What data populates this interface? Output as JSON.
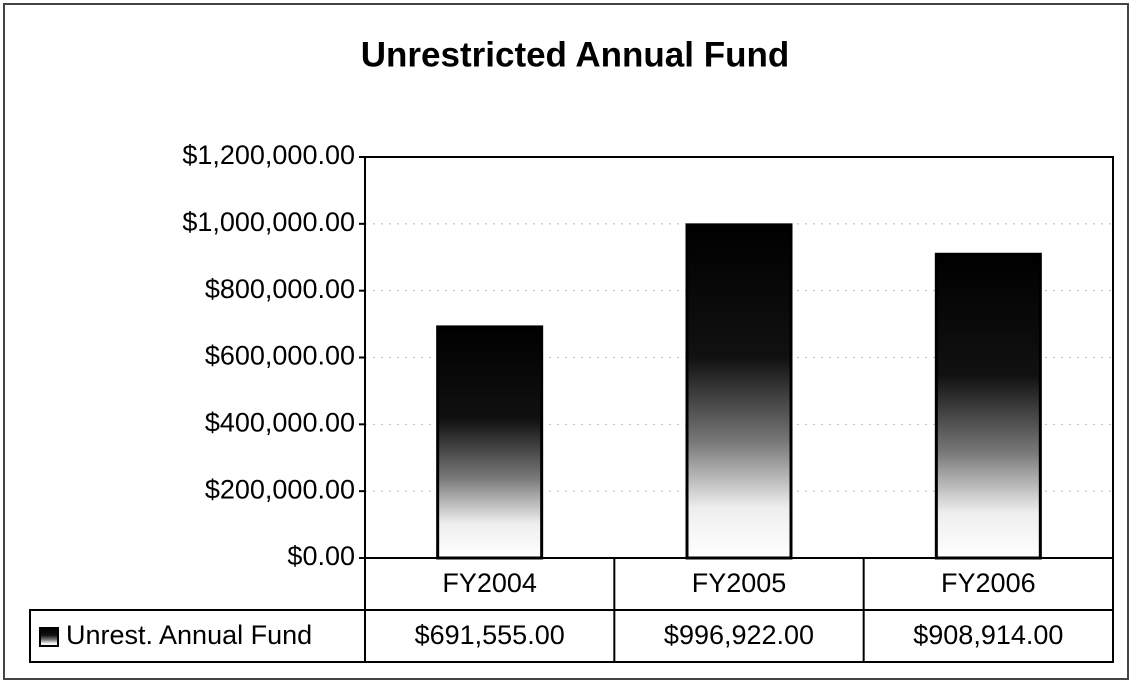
{
  "chart_data": {
    "type": "bar",
    "title": "Unrestricted Annual Fund",
    "categories": [
      "FY2004",
      "FY2005",
      "FY2006"
    ],
    "series": [
      {
        "name": "Unrest. Annual Fund",
        "color": "#000000",
        "values": [
          691555,
          996922,
          908914
        ],
        "value_labels": [
          "$691,555.00",
          "$996,922.00",
          "$908,914.00"
        ]
      }
    ],
    "ylim": [
      0,
      1200000
    ],
    "yticks": [
      {
        "value": 0,
        "label": "$0.00"
      },
      {
        "value": 200000,
        "label": "$200,000.00"
      },
      {
        "value": 400000,
        "label": "$400,000.00"
      },
      {
        "value": 600000,
        "label": "$600,000.00"
      },
      {
        "value": 800000,
        "label": "$800,000.00"
      },
      {
        "value": 1000000,
        "label": "$1,000,000.00"
      },
      {
        "value": 1200000,
        "label": "$1,200,000.00"
      }
    ],
    "grid": true
  }
}
